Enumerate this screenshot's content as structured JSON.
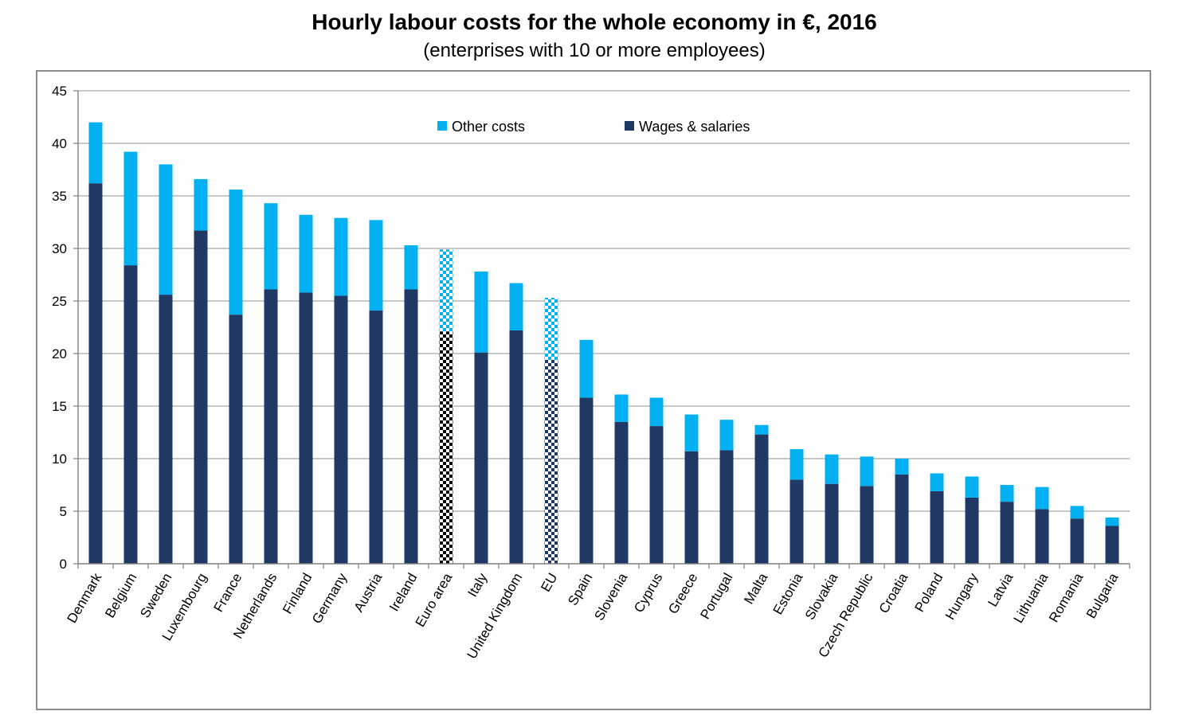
{
  "chart_data": {
    "type": "bar",
    "stacked": true,
    "title": "Hourly labour costs for the whole economy in €, 2016",
    "subtitle": "(enterprises with 10 or more employees)",
    "xlabel": "",
    "ylabel": "",
    "ylim": [
      0,
      45
    ],
    "yticks": [
      0,
      5,
      10,
      15,
      20,
      25,
      30,
      35,
      40,
      45
    ],
    "grid": true,
    "legend_position": "top-center",
    "categories": [
      "Denmark",
      "Belgium",
      "Sweden",
      "Luxembourg",
      "France",
      "Netherlands",
      "Finland",
      "Germany",
      "Austria",
      "Ireland",
      "Euro area",
      "Italy",
      "United Kingdom",
      "EU",
      "Spain",
      "Slovenia",
      "Cyprus",
      "Greece",
      "Portugal",
      "Malta",
      "Estonia",
      "Slovakia",
      "Czech Republic",
      "Croatia",
      "Poland",
      "Hungary",
      "Latvia",
      "Lithuania",
      "Romania",
      "Bulgaria"
    ],
    "series": [
      {
        "name": "Wages & salaries",
        "color": "#1f3864",
        "values": [
          36.2,
          28.4,
          25.6,
          31.7,
          23.7,
          26.1,
          25.8,
          25.5,
          24.1,
          26.1,
          22.1,
          20.1,
          22.2,
          19.4,
          15.8,
          13.5,
          13.1,
          10.7,
          10.8,
          12.3,
          8.0,
          7.6,
          7.4,
          8.5,
          6.9,
          6.3,
          5.9,
          5.2,
          4.3,
          3.6
        ]
      },
      {
        "name": "Other costs",
        "color": "#00b0f0",
        "values": [
          5.8,
          10.8,
          12.4,
          4.9,
          11.9,
          8.2,
          7.4,
          7.4,
          8.6,
          4.2,
          7.8,
          7.7,
          4.5,
          5.9,
          5.5,
          2.6,
          2.7,
          3.5,
          2.9,
          0.9,
          2.9,
          2.8,
          2.8,
          1.5,
          1.7,
          2.0,
          1.6,
          2.1,
          1.2,
          0.8
        ]
      }
    ],
    "aggregate_categories": [
      "Euro area",
      "EU"
    ],
    "aggregate_colors": {
      "Euro area": "#000000",
      "EU": "#1f3864"
    }
  }
}
